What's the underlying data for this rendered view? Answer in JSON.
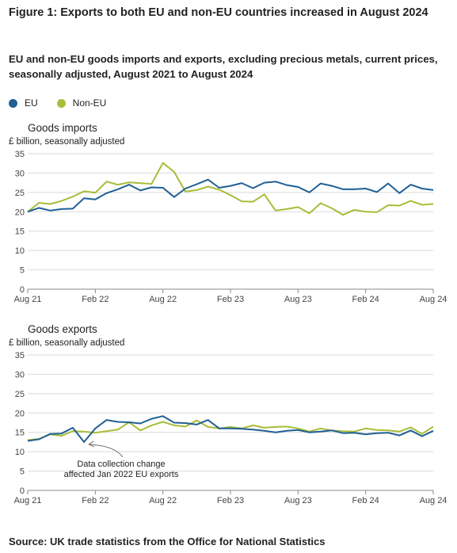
{
  "header": {
    "title": "Figure 1: Exports to both EU and non-EU countries increased in August 2024",
    "subtitle": "EU and non-EU goods imports and exports, excluding precious metals, current prices, seasonally adjusted, August 2021 to August 2024"
  },
  "legend": {
    "items": [
      "EU",
      "Non-EU"
    ]
  },
  "colors": {
    "eu": "#206095",
    "non_eu": "#a8bd3a",
    "grid": "#d9d9d9",
    "axis": "#888888"
  },
  "source": "Source: UK trade statistics from the Office for National Statistics",
  "chart_data": [
    {
      "type": "line",
      "title": "Goods imports",
      "ylabel": "£ billion, seasonally adjusted",
      "ylim": [
        0,
        35
      ],
      "yticks": [
        0,
        5,
        10,
        15,
        20,
        25,
        30,
        35
      ],
      "xtick_labels": [
        "Aug 21",
        "Feb 22",
        "Aug 22",
        "Feb 23",
        "Aug 23",
        "Feb 24",
        "Aug 24"
      ],
      "grid": true,
      "x": [
        "Aug 21",
        "Sep 21",
        "Oct 21",
        "Nov 21",
        "Dec 21",
        "Jan 22",
        "Feb 22",
        "Mar 22",
        "Apr 22",
        "May 22",
        "Jun 22",
        "Jul 22",
        "Aug 22",
        "Sep 22",
        "Oct 22",
        "Nov 22",
        "Dec 22",
        "Jan 23",
        "Feb 23",
        "Mar 23",
        "Apr 23",
        "May 23",
        "Jun 23",
        "Jul 23",
        "Aug 23",
        "Sep 23",
        "Oct 23",
        "Nov 23",
        "Dec 23",
        "Jan 24",
        "Feb 24",
        "Mar 24",
        "Apr 24",
        "May 24",
        "Jun 24",
        "Jul 24",
        "Aug 24"
      ],
      "series": [
        {
          "name": "EU",
          "values": [
            20.0,
            21.0,
            20.3,
            20.7,
            20.8,
            23.5,
            23.2,
            24.8,
            25.8,
            27.0,
            25.5,
            26.3,
            26.2,
            23.8,
            26.0,
            27.1,
            28.3,
            26.2,
            26.7,
            27.4,
            26.1,
            27.5,
            27.8,
            26.9,
            26.4,
            25.0,
            27.3,
            26.7,
            25.8,
            25.8,
            26.0,
            25.1,
            27.3,
            24.8,
            27.0,
            26.0,
            25.6
          ]
        },
        {
          "name": "Non-EU",
          "values": [
            20.0,
            22.3,
            22.0,
            22.8,
            23.9,
            25.3,
            24.9,
            27.8,
            27.0,
            27.6,
            27.4,
            27.2,
            32.6,
            30.3,
            25.2,
            25.6,
            26.5,
            25.7,
            24.3,
            22.7,
            22.6,
            24.5,
            20.3,
            20.7,
            21.2,
            19.6,
            22.2,
            20.9,
            19.2,
            20.5,
            20.0,
            19.9,
            21.7,
            21.6,
            22.8,
            21.8,
            22.0
          ]
        }
      ]
    },
    {
      "type": "line",
      "title": "Goods exports",
      "ylabel": "£ billion, seasonally adjusted",
      "ylim": [
        0,
        35
      ],
      "yticks": [
        0,
        5,
        10,
        15,
        20,
        25,
        30,
        35
      ],
      "xtick_labels": [
        "Aug 21",
        "Feb 22",
        "Aug 22",
        "Feb 23",
        "Aug 23",
        "Feb 24",
        "Aug 24"
      ],
      "grid": true,
      "x": [
        "Aug 21",
        "Sep 21",
        "Oct 21",
        "Nov 21",
        "Dec 21",
        "Jan 22",
        "Feb 22",
        "Mar 22",
        "Apr 22",
        "May 22",
        "Jun 22",
        "Jul 22",
        "Aug 22",
        "Sep 22",
        "Oct 22",
        "Nov 22",
        "Dec 22",
        "Jan 23",
        "Feb 23",
        "Mar 23",
        "Apr 23",
        "May 23",
        "Jun 23",
        "Jul 23",
        "Aug 23",
        "Sep 23",
        "Oct 23",
        "Nov 23",
        "Dec 23",
        "Jan 24",
        "Feb 24",
        "Mar 24",
        "Apr 24",
        "May 24",
        "Jun 24",
        "Jul 24",
        "Aug 24"
      ],
      "annotation": {
        "text": [
          "Data collection change",
          "affected Jan 2022 EU exports"
        ],
        "x": "Jan 22",
        "y": 12.5
      },
      "series": [
        {
          "name": "EU",
          "values": [
            12.8,
            13.2,
            14.6,
            14.7,
            16.2,
            12.5,
            16.0,
            18.2,
            17.7,
            17.6,
            17.3,
            18.5,
            19.2,
            17.5,
            17.4,
            17.0,
            18.2,
            16.0,
            16.0,
            15.9,
            15.7,
            15.4,
            15.0,
            15.4,
            15.6,
            15.0,
            15.2,
            15.5,
            14.8,
            14.9,
            14.5,
            14.8,
            14.9,
            14.2,
            15.5,
            14.0,
            15.4
          ]
        },
        {
          "name": "Non-EU",
          "values": [
            13.0,
            13.3,
            14.5,
            14.1,
            15.3,
            15.2,
            14.9,
            15.3,
            15.7,
            17.6,
            15.5,
            16.8,
            17.7,
            16.8,
            16.5,
            18.1,
            16.4,
            16.0,
            16.4,
            16.0,
            16.8,
            16.2,
            16.4,
            16.5,
            16.0,
            15.2,
            16.0,
            15.5,
            15.3,
            15.2,
            16.0,
            15.6,
            15.5,
            15.2,
            16.3,
            14.6,
            16.5
          ]
        }
      ]
    }
  ]
}
